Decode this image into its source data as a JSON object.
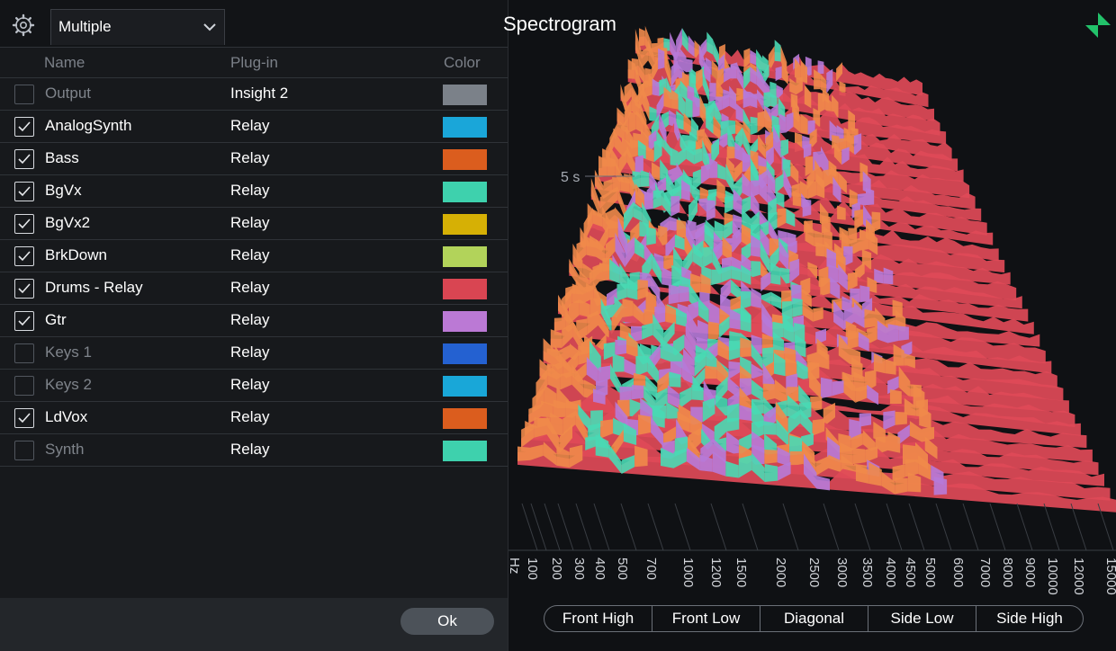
{
  "header": {
    "dropdown_value": "Multiple",
    "title": "Spectrogram"
  },
  "columns": {
    "name": "Name",
    "plugin": "Plug-in",
    "color": "Color"
  },
  "rows": [
    {
      "checked": false,
      "name": "Output",
      "plugin": "Insight 2",
      "color": "#7b8189"
    },
    {
      "checked": true,
      "name": "AnalogSynth",
      "plugin": "Relay",
      "color": "#1aa6d9"
    },
    {
      "checked": true,
      "name": "Bass",
      "plugin": "Relay",
      "color": "#db5d1e"
    },
    {
      "checked": true,
      "name": "BgVx",
      "plugin": "Relay",
      "color": "#3ed1ad"
    },
    {
      "checked": true,
      "name": "BgVx2",
      "plugin": "Relay",
      "color": "#d6b005"
    },
    {
      "checked": true,
      "name": "BrkDown",
      "plugin": "Relay",
      "color": "#b2d35a"
    },
    {
      "checked": true,
      "name": "Drums - Relay",
      "plugin": "Relay",
      "color": "#d94552"
    },
    {
      "checked": true,
      "name": "Gtr",
      "plugin": "Relay",
      "color": "#bb79d5"
    },
    {
      "checked": false,
      "name": "Keys 1",
      "plugin": "Relay",
      "color": "#2461d1"
    },
    {
      "checked": false,
      "name": "Keys 2",
      "plugin": "Relay",
      "color": "#19a7d8"
    },
    {
      "checked": true,
      "name": "LdVox",
      "plugin": "Relay",
      "color": "#db5d1e"
    },
    {
      "checked": false,
      "name": "Synth",
      "plugin": "Relay",
      "color": "#3ed1ad"
    }
  ],
  "ok_label": "Ok",
  "spectrogram": {
    "time_label": "5 s",
    "freq_labels": [
      "Hz",
      "100",
      "200",
      "300",
      "400",
      "500",
      "700",
      "1000",
      "1200",
      "1500",
      "2000",
      "2500",
      "3000",
      "3500",
      "4000",
      "4500",
      "5000",
      "6000",
      "7000",
      "8000",
      "9000",
      "10000",
      "12000",
      "15000"
    ],
    "layer_colors": [
      "#e04a58",
      "#f08a4a",
      "#b77ad8",
      "#49d9b4"
    ]
  },
  "view_buttons": [
    "Front High",
    "Front Low",
    "Diagonal",
    "Side Low",
    "Side High"
  ],
  "icons": {
    "settings": "gear-icon",
    "dropdown": "chevron-down-icon",
    "checkbox": "checkmark-icon",
    "expand": "expand-icon"
  },
  "accent_color": "#22c26a"
}
